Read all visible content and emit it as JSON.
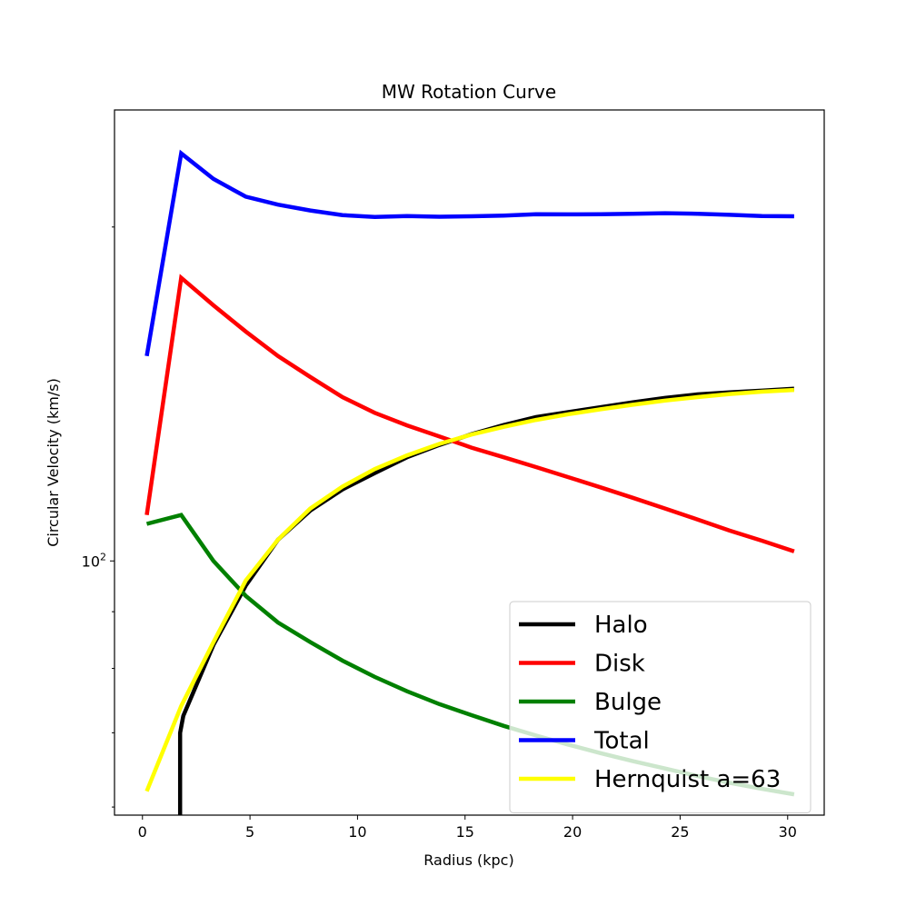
{
  "chart_data": {
    "type": "line",
    "title": "MW Rotation Curve",
    "xlabel": "Radius (kpc)",
    "ylabel": "Circular Velocity (km/s)",
    "xlim": [
      -1.3,
      31.7
    ],
    "ylim": [
      59,
      255
    ],
    "yscale": "log",
    "x_ticks": [
      0,
      5,
      10,
      15,
      20,
      25,
      30
    ],
    "y_major_ticks": [
      {
        "value": 100,
        "base": "10",
        "exp": "2"
      }
    ],
    "y_minor_ticks": [
      60,
      70,
      80,
      90,
      200
    ],
    "grid": false,
    "legend_position": "lower-right",
    "series": [
      {
        "name": "Halo",
        "color": "#000000",
        "x": [
          1.75,
          1.75,
          1.9,
          3.3,
          4.8,
          6.3,
          7.8,
          9.3,
          10.8,
          12.3,
          13.8,
          15.3,
          16.8,
          18.3,
          19.8,
          21.3,
          22.8,
          24.3,
          25.8,
          27.3,
          28.8,
          30.3
        ],
        "y": [
          59,
          70,
          72.5,
          84,
          95,
          104.5,
          111,
          116,
          120,
          124,
          127.2,
          130.1,
          132.6,
          134.8,
          136.2,
          137.6,
          139.0,
          140.3,
          141.3,
          141.9,
          142.4,
          143.0
        ]
      },
      {
        "name": "Disk",
        "color": "#ff0000",
        "x": [
          0.2,
          1.8,
          3.3,
          4.8,
          6.3,
          7.8,
          9.3,
          10.8,
          12.3,
          13.8,
          15.3,
          16.8,
          18.3,
          19.8,
          21.3,
          22.8,
          24.3,
          25.8,
          27.3,
          28.8,
          30.3
        ],
        "y": [
          110,
          180,
          170,
          161,
          153,
          146.5,
          140.5,
          136,
          132.5,
          129.5,
          126.5,
          124,
          121.5,
          119,
          116.5,
          114,
          111.5,
          109,
          106.5,
          104.3,
          102
        ]
      },
      {
        "name": "Bulge",
        "color": "#008000",
        "x": [
          0.2,
          1.8,
          3.3,
          4.8,
          6.3,
          7.8,
          9.3,
          10.8,
          12.3,
          13.8,
          15.3,
          16.8,
          18.3,
          19.8,
          21.3,
          22.8,
          24.3,
          25.8,
          27.3,
          28.8,
          30.3
        ],
        "y": [
          108,
          110,
          100,
          93,
          88,
          84.5,
          81.3,
          78.6,
          76.3,
          74.3,
          72.6,
          71.0,
          69.6,
          68.3,
          67.1,
          66.0,
          65.0,
          64.0,
          63.1,
          62.3,
          61.6
        ]
      },
      {
        "name": "Total",
        "color": "#0000ff",
        "x": [
          0.2,
          1.8,
          3.3,
          4.8,
          6.3,
          7.8,
          9.3,
          10.8,
          12.3,
          13.8,
          15.3,
          16.8,
          18.3,
          19.8,
          21.3,
          22.8,
          24.3,
          25.8,
          27.3,
          28.8,
          30.3
        ],
        "y": [
          153,
          233,
          221,
          213,
          209.5,
          207,
          205,
          204.2,
          204.6,
          204.3,
          204.5,
          204.8,
          205.4,
          205.3,
          205.4,
          205.6,
          205.8,
          205.6,
          205.1,
          204.6,
          204.5
        ]
      },
      {
        "name": "Hernquist a=63",
        "color": "#ffff00",
        "x": [
          0.2,
          1.8,
          3.3,
          4.8,
          6.3,
          7.8,
          9.3,
          10.8,
          12.3,
          13.8,
          15.3,
          16.8,
          18.3,
          19.8,
          21.3,
          22.8,
          24.3,
          25.8,
          27.3,
          28.8,
          30.3
        ],
        "y": [
          62,
          74,
          84.5,
          96,
          104.5,
          111.5,
          116.7,
          121,
          124.5,
          127.5,
          130,
          132.1,
          134,
          135.6,
          137,
          138.3,
          139.5,
          140.5,
          141.4,
          142.1,
          142.6
        ]
      }
    ]
  }
}
